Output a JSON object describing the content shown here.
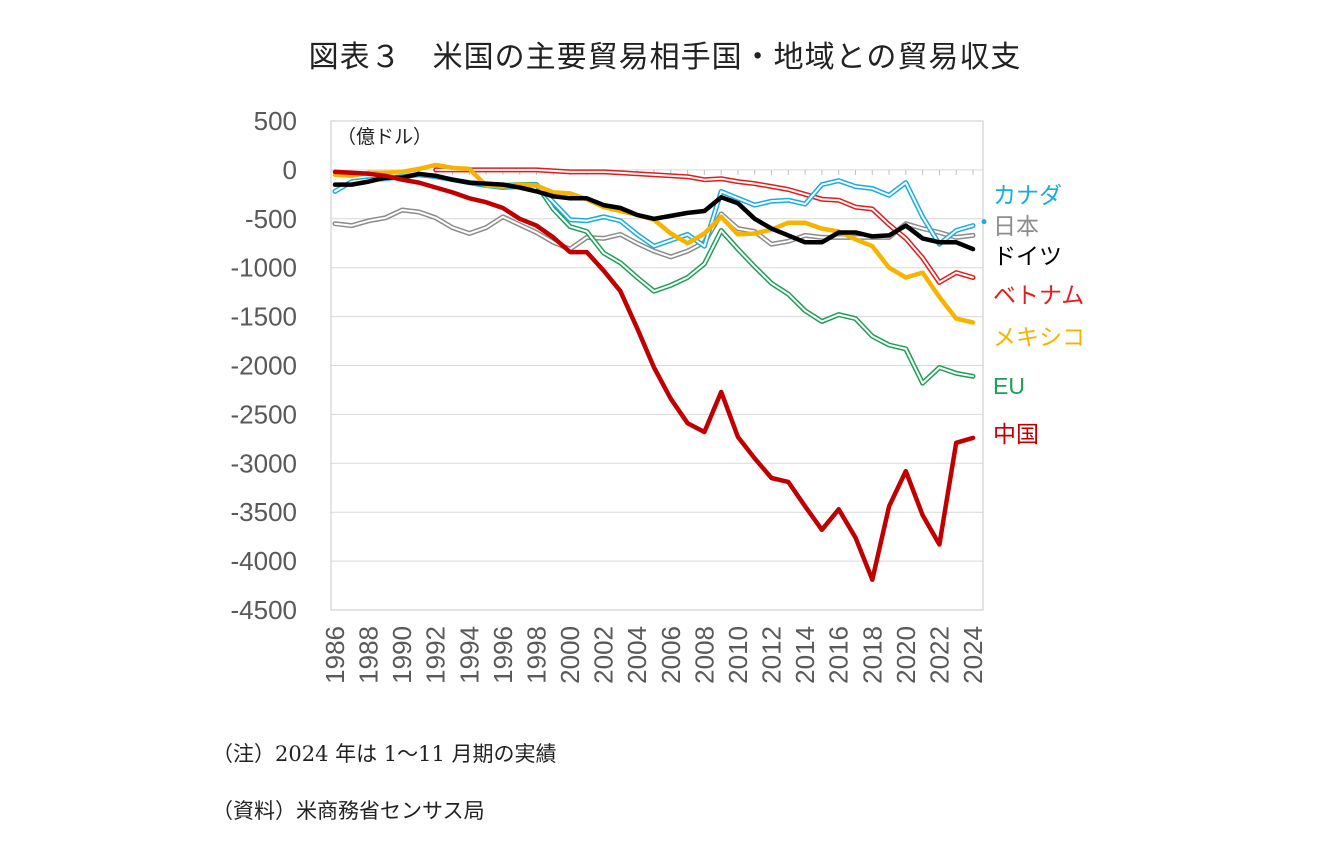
{
  "figure": {
    "title": "図表３　米国の主要貿易相手国・地域との貿易収支",
    "note": "（注）2024 年は 1〜11 月期の実績",
    "source": "（資料）米商務省センサス局"
  },
  "chart_data": {
    "type": "line",
    "title": "図表３　米国の主要貿易相手国・地域との貿易収支",
    "unit_label": "（億ドル）",
    "xlabel": "",
    "ylabel": "",
    "ylim": [
      -4500,
      500
    ],
    "yticks": [
      500,
      0,
      -500,
      -1000,
      -1500,
      -2000,
      -2500,
      -3000,
      -3500,
      -4000,
      -4500
    ],
    "xlim": [
      1986,
      2024
    ],
    "xticks": [
      1986,
      1988,
      1990,
      1992,
      1994,
      1996,
      1998,
      2000,
      2002,
      2004,
      2006,
      2008,
      2010,
      2012,
      2014,
      2016,
      2018,
      2020,
      2022,
      2024
    ],
    "grid": "horizontal",
    "legend_placement": "right",
    "x": [
      1986,
      1987,
      1988,
      1989,
      1990,
      1991,
      1992,
      1993,
      1994,
      1995,
      1996,
      1997,
      1998,
      1999,
      2000,
      2001,
      2002,
      2003,
      2004,
      2005,
      2006,
      2007,
      2008,
      2009,
      2010,
      2011,
      2012,
      2013,
      2014,
      2015,
      2016,
      2017,
      2018,
      2019,
      2020,
      2021,
      2022,
      2023,
      2024
    ],
    "series": [
      {
        "name": "カナダ",
        "color": "#1aabe0",
        "style": "double",
        "values": [
          -220,
          -120,
          -100,
          -90,
          -70,
          -50,
          -70,
          -100,
          -130,
          -160,
          -180,
          -170,
          -150,
          -330,
          -510,
          -520,
          -480,
          -520,
          -660,
          -780,
          -720,
          -660,
          -780,
          -220,
          -290,
          -360,
          -320,
          -310,
          -350,
          -150,
          -110,
          -170,
          -190,
          -260,
          -130,
          -480,
          -760,
          -620,
          -570
        ]
      },
      {
        "name": "日本",
        "color": "#8c8c8c",
        "style": "double",
        "values": [
          -550,
          -570,
          -520,
          -490,
          -410,
          -430,
          -490,
          -590,
          -650,
          -590,
          -480,
          -560,
          -640,
          -740,
          -810,
          -690,
          -700,
          -660,
          -750,
          -830,
          -890,
          -830,
          -740,
          -450,
          -600,
          -630,
          -760,
          -730,
          -670,
          -690,
          -690,
          -690,
          -690,
          -690,
          -550,
          -600,
          -640,
          -690,
          -670
        ]
      },
      {
        "name": "ドイツ",
        "color": "#000000",
        "style": "bold",
        "values": [
          -150,
          -150,
          -120,
          -80,
          -80,
          -40,
          -60,
          -100,
          -130,
          -140,
          -150,
          -180,
          -220,
          -270,
          -290,
          -290,
          -360,
          -390,
          -460,
          -500,
          -470,
          -440,
          -420,
          -280,
          -340,
          -500,
          -600,
          -670,
          -740,
          -740,
          -640,
          -640,
          -680,
          -670,
          -570,
          -700,
          -740,
          -740,
          -810
        ]
      },
      {
        "name": "ベトナム",
        "color": "#e21c1c",
        "style": "double",
        "values": [
          null,
          null,
          null,
          null,
          null,
          null,
          0,
          0,
          0,
          0,
          0,
          0,
          0,
          -10,
          -20,
          -20,
          -20,
          -30,
          -40,
          -50,
          -60,
          -70,
          -100,
          -90,
          -120,
          -140,
          -170,
          -200,
          -250,
          -300,
          -310,
          -380,
          -400,
          -560,
          -700,
          -900,
          -1150,
          -1050,
          -1100
        ]
      },
      {
        "name": "メキシコ",
        "color": "#f5b400",
        "style": "bold",
        "values": [
          -50,
          -60,
          -30,
          -30,
          -20,
          10,
          50,
          20,
          10,
          -160,
          -170,
          -150,
          -160,
          -230,
          -240,
          -300,
          -380,
          -420,
          -460,
          -510,
          -650,
          -750,
          -650,
          -480,
          -660,
          -650,
          -610,
          -540,
          -540,
          -600,
          -630,
          -710,
          -780,
          -1000,
          -1100,
          -1050,
          -1300,
          -1520,
          -1560
        ]
      },
      {
        "name": "EU",
        "color": "#1e9e57",
        "style": "double",
        "values": [
          null,
          null,
          null,
          null,
          null,
          null,
          null,
          null,
          null,
          null,
          -160,
          -150,
          -150,
          -400,
          -580,
          -630,
          -850,
          -950,
          -1100,
          -1240,
          -1180,
          -1100,
          -960,
          -620,
          -810,
          -990,
          -1160,
          -1270,
          -1440,
          -1550,
          -1480,
          -1520,
          -1700,
          -1790,
          -1830,
          -2180,
          -2020,
          -2080,
          -2110
        ]
      },
      {
        "name": "中国",
        "color": "#c00000",
        "style": "bold",
        "values": [
          -20,
          -30,
          -40,
          -60,
          -100,
          -130,
          -180,
          -230,
          -290,
          -330,
          -390,
          -500,
          -570,
          -690,
          -840,
          -840,
          -1030,
          -1240,
          -1620,
          -2020,
          -2340,
          -2590,
          -2680,
          -2270,
          -2730,
          -2950,
          -3150,
          -3190,
          -3440,
          -3680,
          -3470,
          -3760,
          -4190,
          -3440,
          -3080,
          -3530,
          -3830,
          -2790,
          -2740
        ]
      }
    ]
  }
}
